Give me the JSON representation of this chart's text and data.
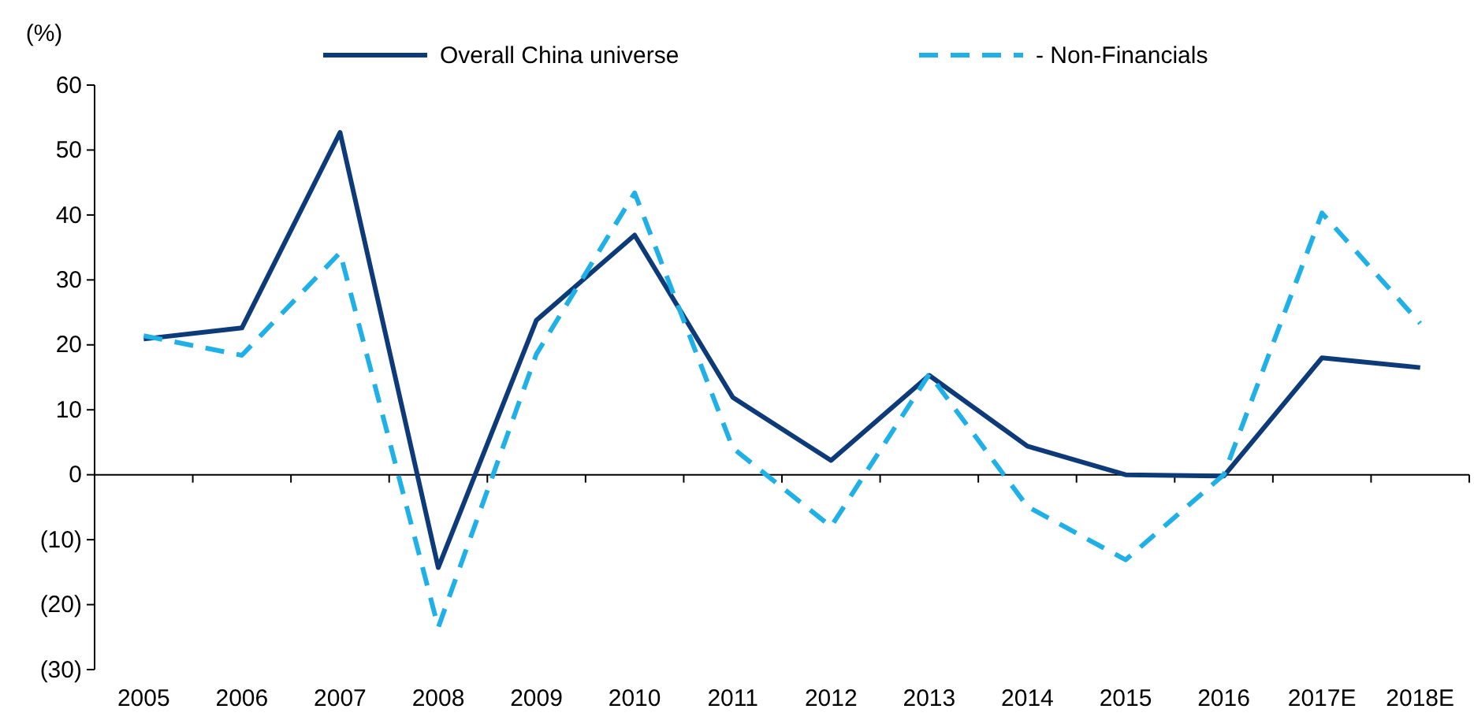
{
  "chart_data": {
    "type": "line",
    "ylabel": "(%)",
    "categories": [
      "2005",
      "2006",
      "2007",
      "2008",
      "2009",
      "2010",
      "2011",
      "2012",
      "2013",
      "2014",
      "2015",
      "2016",
      "2017E",
      "2018E"
    ],
    "series": [
      {
        "name": "Overall China universe",
        "color": "#0d3a78",
        "line_style": "solid",
        "values": [
          20.9,
          22.6,
          52.7,
          -14.3,
          23.8,
          36.9,
          11.9,
          2.2,
          15.3,
          4.4,
          0,
          -0.2,
          18,
          16.5
        ]
      },
      {
        "name": "- Non-Financials",
        "color": "#1fb0e8",
        "line_style": "dashed",
        "values": [
          21.4,
          18.4,
          34.2,
          -23.5,
          18.6,
          43.4,
          4.1,
          -8,
          15.5,
          -4.9,
          -13.1,
          0,
          40.3,
          23.3
        ]
      }
    ],
    "ylim": [
      -30,
      60
    ],
    "yticks": [
      {
        "value": -30,
        "label": "(30)"
      },
      {
        "value": -20,
        "label": "(20)"
      },
      {
        "value": -10,
        "label": "(10)"
      },
      0,
      10,
      20,
      30,
      40,
      50,
      60
    ],
    "legend": "top",
    "marker": "none"
  }
}
